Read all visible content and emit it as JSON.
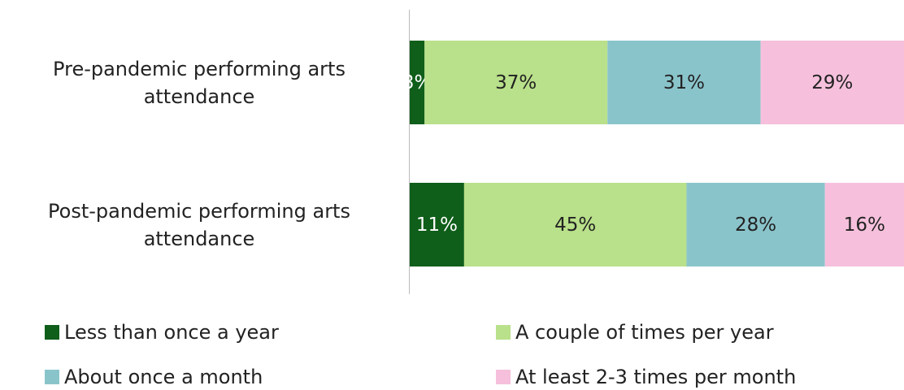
{
  "chart_data": {
    "type": "stacked-bar-horizontal",
    "categories": [
      "Pre-pandemic performing arts attendance",
      "Post-pandemic performing arts attendance"
    ],
    "xlim": [
      0,
      100
    ],
    "series": [
      {
        "name": "Less than once a year",
        "color": "#0f5e1a",
        "values": [
          3,
          11
        ],
        "value_labels": [
          "3%",
          "11%"
        ]
      },
      {
        "name": "A couple of times per year",
        "color": "#b9e08a",
        "values": [
          37,
          45
        ],
        "value_labels": [
          "37%",
          "45%"
        ]
      },
      {
        "name": "About once a month",
        "color": "#8ac4cb",
        "values": [
          31,
          28
        ],
        "value_labels": [
          "31%",
          "28%"
        ]
      },
      {
        "name": "At least 2-3 times per month",
        "color": "#f6c0dc",
        "values": [
          29,
          16
        ],
        "value_labels": [
          "29%",
          "16%"
        ]
      }
    ]
  }
}
